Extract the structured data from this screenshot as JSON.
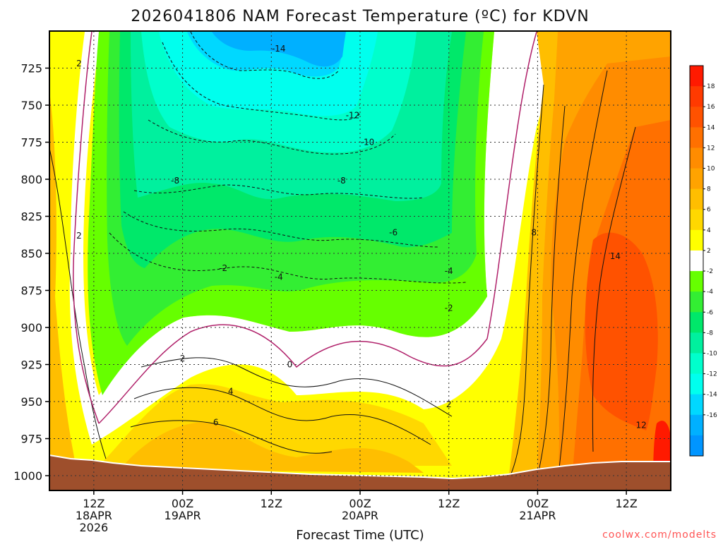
{
  "chart_data": {
    "type": "heatmap",
    "title": "2026041806 NAM Forecast Temperature (ºC) for KDVN",
    "xlabel": "Forecast Time (UTC)",
    "credit": "coolwx.com/modelts",
    "ylim": [
      1010,
      700
    ],
    "y_ticks": [
      725,
      750,
      775,
      800,
      825,
      850,
      875,
      900,
      925,
      950,
      975,
      1000
    ],
    "x_ticks": [
      {
        "hours": 6,
        "lines": [
          "12Z",
          "18APR",
          "2026"
        ]
      },
      {
        "hours": 18,
        "lines": [
          "00Z",
          "19APR"
        ]
      },
      {
        "hours": 30,
        "lines": [
          "12Z"
        ]
      },
      {
        "hours": 42,
        "lines": [
          "00Z",
          "20APR"
        ]
      },
      {
        "hours": 54,
        "lines": [
          "12Z"
        ]
      },
      {
        "hours": 66,
        "lines": [
          "00Z",
          "21APR"
        ]
      },
      {
        "hours": 78,
        "lines": [
          "12Z"
        ]
      }
    ],
    "xlim": [
      0,
      84
    ],
    "colorbar": {
      "ticks": [
        18,
        16,
        14,
        12,
        10,
        8,
        6,
        4,
        2,
        -2,
        -4,
        -6,
        -8,
        -10,
        -12,
        -14,
        -16
      ],
      "bins": [
        {
          "max": 20,
          "color": "#ff1a00"
        },
        {
          "max": 18,
          "color": "#ff3a00"
        },
        {
          "max": 16,
          "color": "#ff5200"
        },
        {
          "max": 14,
          "color": "#ff7000"
        },
        {
          "max": 12,
          "color": "#ff8c00"
        },
        {
          "max": 10,
          "color": "#ffa300"
        },
        {
          "max": 8,
          "color": "#ffbe00"
        },
        {
          "max": 6,
          "color": "#ffd800"
        },
        {
          "max": 4,
          "color": "#ffff00"
        },
        {
          "max": 2,
          "color": "#ffffff"
        },
        {
          "max": -2,
          "color": "#66ff00"
        },
        {
          "max": -4,
          "color": "#33ee33"
        },
        {
          "max": -6,
          "color": "#00e86a"
        },
        {
          "max": -8,
          "color": "#00f09e"
        },
        {
          "max": -10,
          "color": "#00ffcc"
        },
        {
          "max": -12,
          "color": "#00ffee"
        },
        {
          "max": -14,
          "color": "#00d8ff"
        },
        {
          "max": -16,
          "color": "#00b0ff"
        },
        {
          "max": -18,
          "color": "#0095ff"
        }
      ]
    },
    "contour_labels": [
      {
        "text": "2",
        "hours": 4,
        "pressure": 722
      },
      {
        "text": "2",
        "hours": 4,
        "pressure": 838
      },
      {
        "text": "-14",
        "hours": 31,
        "pressure": 712
      },
      {
        "text": "-12",
        "hours": 41,
        "pressure": 757
      },
      {
        "text": "-10",
        "hours": 43,
        "pressure": 775
      },
      {
        "text": "-8",
        "hours": 17,
        "pressure": 801
      },
      {
        "text": "-8",
        "hours": 39.5,
        "pressure": 801
      },
      {
        "text": "-6",
        "hours": 46.5,
        "pressure": 836
      },
      {
        "text": "-2",
        "hours": 23.5,
        "pressure": 860
      },
      {
        "text": "-4",
        "hours": 31,
        "pressure": 866
      },
      {
        "text": "-4",
        "hours": 54,
        "pressure": 862
      },
      {
        "text": "-2",
        "hours": 54,
        "pressure": 887
      },
      {
        "text": "2",
        "hours": 18,
        "pressure": 921
      },
      {
        "text": "0",
        "hours": 32.5,
        "pressure": 925
      },
      {
        "text": "4",
        "hours": 24.5,
        "pressure": 943
      },
      {
        "text": "6",
        "hours": 22.5,
        "pressure": 964
      },
      {
        "text": "2",
        "hours": 54,
        "pressure": 952
      },
      {
        "text": "8",
        "hours": 65.5,
        "pressure": 836
      },
      {
        "text": "14",
        "hours": 76.5,
        "pressure": 852
      },
      {
        "text": "12",
        "hours": 80,
        "pressure": 966
      }
    ]
  }
}
